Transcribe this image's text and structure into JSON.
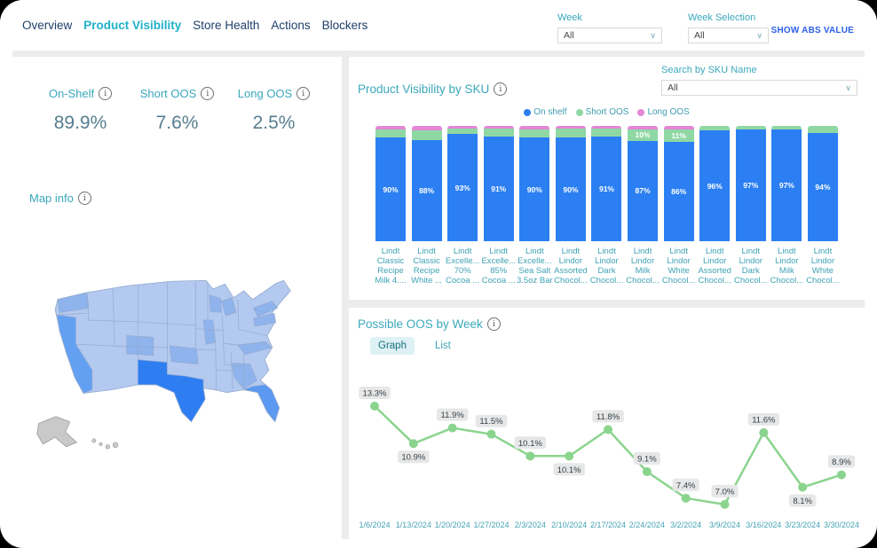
{
  "nav": {
    "items": [
      {
        "label": "Overview",
        "active": false
      },
      {
        "label": "Product Visibility",
        "active": true
      },
      {
        "label": "Store Health",
        "active": false
      },
      {
        "label": "Actions",
        "active": false
      },
      {
        "label": "Blockers",
        "active": false
      }
    ]
  },
  "filters": {
    "week_label": "Week",
    "week_value": "All",
    "week_selection_label": "Week Selection",
    "week_selection_value": "All",
    "show_abs_label": "SHOW ABS VALUE"
  },
  "kpis": [
    {
      "label": "On-Shelf",
      "value": "89.9%"
    },
    {
      "label": "Short OOS",
      "value": "7.6%"
    },
    {
      "label": "Long OOS",
      "value": "2.5%"
    }
  ],
  "map": {
    "label": "Map info",
    "highlights": {
      "TX": "#2e7ef2",
      "CA": "#63a0f2",
      "FL": "#5b99f2"
    },
    "base_color": "#b3c9ef",
    "no_data_color": "#c9c9c9"
  },
  "sku_section": {
    "title": "Product Visibility by SKU",
    "search_label": "Search by SKU Name",
    "search_value": "All"
  },
  "oos_section": {
    "title": "Possible OOS by Week",
    "tabs": [
      "Graph",
      "List"
    ],
    "active_tab": "Graph"
  },
  "colors": {
    "accent_teal": "#3aa8bb",
    "nav_active": "#1fb1c9",
    "abs_link_blue": "#2b5fe8",
    "kpi_value": "#567e8e"
  },
  "chart_data": [
    {
      "type": "bar",
      "stacked": true,
      "title": "Product Visibility by SKU",
      "legend": [
        "On shelf",
        "Short OOS",
        "Long OOS"
      ],
      "legend_colors": [
        "#2b7ff2",
        "#8fd8a4",
        "#e387d6"
      ],
      "ylim": [
        0,
        100
      ],
      "categories": [
        [
          "Lindt",
          "Classic",
          "Recipe",
          "Milk 4...."
        ],
        [
          "Lindt",
          "Classic",
          "Recipe",
          "White ..."
        ],
        [
          "Lindt",
          "Excelle...",
          "70%",
          "Cocoa ..."
        ],
        [
          "Lindt",
          "Excelle...",
          "85%",
          "Cocoa ..."
        ],
        [
          "Lindt",
          "Excelle...",
          "Sea Salt",
          "3.5oz Bar"
        ],
        [
          "Lindt",
          "Lindor",
          "Assorted",
          "Chocol..."
        ],
        [
          "Lindt",
          "Lindor",
          "Dark",
          "Chocol..."
        ],
        [
          "Lindt",
          "Lindor",
          "Milk",
          "Chocol..."
        ],
        [
          "Lindt",
          "Lindor",
          "White",
          "Chocol..."
        ],
        [
          "Lindt",
          "Lindor",
          "Assorted",
          "Chocol..."
        ],
        [
          "Lindt",
          "Lindor",
          "Dark",
          "Chocol..."
        ],
        [
          "Lindt",
          "Lindor",
          "Milk",
          "Chocol..."
        ],
        [
          "Lindt",
          "Lindor",
          "White",
          "Chocol..."
        ]
      ],
      "series": [
        {
          "name": "On shelf",
          "values": [
            90,
            88,
            93,
            91,
            90,
            90,
            91,
            87,
            86,
            96,
            97,
            97,
            94
          ],
          "labels": [
            "90%",
            "88%",
            "93%",
            "91%",
            "90%",
            "90%",
            "91%",
            "87%",
            "86%",
            "96%",
            "97%",
            "97%",
            "94%"
          ]
        },
        {
          "name": "Short OOS",
          "values": [
            7,
            8,
            5,
            7,
            7,
            8,
            7,
            10,
            11,
            4,
            3,
            3,
            6
          ],
          "labels": [
            null,
            null,
            null,
            null,
            null,
            null,
            null,
            "10%",
            "11%",
            null,
            null,
            null,
            null
          ]
        },
        {
          "name": "Long OOS",
          "values": [
            3,
            4,
            2,
            2,
            3,
            2,
            2,
            3,
            3,
            0,
            0,
            0,
            0
          ],
          "labels": [
            null,
            null,
            null,
            null,
            null,
            null,
            null,
            null,
            null,
            null,
            null,
            null,
            null
          ]
        }
      ]
    },
    {
      "type": "line",
      "title": "Possible OOS by Week",
      "color": "#8bd48e",
      "x": [
        "1/6/2024",
        "1/13/2024",
        "1/20/2024",
        "1/27/2024",
        "2/3/2024",
        "2/10/2024",
        "2/17/2024",
        "2/24/2024",
        "3/2/2024",
        "3/9/2024",
        "3/16/2024",
        "3/23/2024",
        "3/30/2024"
      ],
      "values": [
        13.3,
        10.9,
        11.9,
        11.5,
        10.1,
        10.1,
        11.8,
        9.1,
        7.4,
        7.0,
        11.6,
        8.1,
        8.9
      ],
      "labels": [
        "13.3%",
        "10.9%",
        "11.9%",
        "11.5%",
        "10.1%",
        "10.1%",
        "11.8%",
        "9.1%",
        "7.4%",
        "7.0%",
        "11.6%",
        "8.1%",
        "8.9%"
      ],
      "label_position": [
        "above",
        "below",
        "above",
        "above",
        "above",
        "below",
        "above",
        "above",
        "above",
        "above",
        "above",
        "below",
        "above"
      ],
      "label_bg": "#e7e7e7",
      "label_text_color": "#333f47",
      "axis_text_color": "#44a3b4"
    }
  ]
}
